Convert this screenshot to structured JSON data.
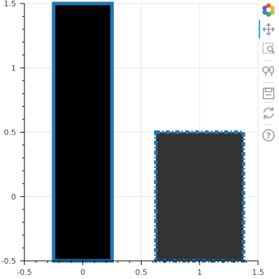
{
  "chart_data": {
    "type": "bar",
    "title": "",
    "xlabel": "",
    "ylabel": "",
    "xlim": [
      -0.5,
      1.5
    ],
    "ylim": [
      -0.5,
      1.5
    ],
    "x_ticks": [
      "-0.5",
      "0",
      "0.5",
      "1",
      "1.5"
    ],
    "y_ticks": [
      "-0.5",
      "0",
      "0.5",
      "1",
      "1.5"
    ],
    "grid": true,
    "bars": [
      {
        "x": 0,
        "width": 0.5,
        "bottom": -0.5,
        "top": 1.5,
        "fill": "#000000",
        "line_color": "#1f77b4",
        "line_dash": "solid"
      },
      {
        "x": 1,
        "width": 0.75,
        "bottom": -0.5,
        "top": 0.5,
        "fill": "#333333",
        "line_color": "#1f77b4",
        "line_dash": "dashdot"
      }
    ]
  },
  "toolbar": {
    "logo": "bokeh-logo-icon",
    "tools": [
      {
        "name": "pan-icon",
        "active": true
      },
      {
        "name": "box-zoom-icon",
        "active": false
      },
      {
        "name": "wheel-zoom-icon",
        "active": false
      },
      {
        "name": "save-icon",
        "active": false
      },
      {
        "name": "reset-icon",
        "active": false
      },
      {
        "name": "help-icon",
        "active": false
      }
    ],
    "active_color": "#26aae1"
  }
}
